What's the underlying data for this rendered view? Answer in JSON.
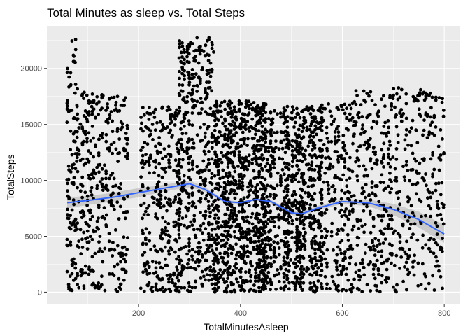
{
  "chart_data": {
    "type": "scatter",
    "title": "Total Minutes as sleep vs. Total Steps",
    "xlabel": "TotalMinutesAsleep",
    "ylabel": "TotalSteps",
    "xlim": [
      20,
      830
    ],
    "ylim": [
      -1100,
      23800
    ],
    "xticks": [
      200,
      400,
      600,
      800
    ],
    "xtick_labels": [
      "200",
      "400",
      "600",
      "800"
    ],
    "yticks": [
      0,
      5000,
      10000,
      15000,
      20000
    ],
    "ytick_labels": [
      "0",
      "5000",
      "10000",
      "15000",
      "20000"
    ],
    "grid": true,
    "legend": "none",
    "colors": {
      "panel": "#ebebeb",
      "grid": "#ffffff",
      "points": "#000000",
      "smooth_line": "#3366ff",
      "confidence_band": "#999999"
    },
    "smooth_line": {
      "x": [
        60,
        100,
        150,
        200,
        250,
        300,
        330,
        370,
        400,
        430,
        460,
        500,
        520,
        550,
        600,
        650,
        700,
        750,
        800
      ],
      "y": [
        8000,
        8200,
        8500,
        8900,
        9300,
        9700,
        9200,
        8100,
        8000,
        8300,
        8100,
        7100,
        7000,
        7500,
        8100,
        8000,
        7400,
        6500,
        5200
      ]
    },
    "confidence_band": {
      "x": [
        60,
        100,
        150,
        200,
        250,
        300,
        330,
        370,
        400,
        430,
        460,
        500,
        520,
        550,
        600,
        650,
        700,
        750,
        800
      ],
      "lower": [
        7500,
        7800,
        8100,
        8500,
        9000,
        9400,
        9000,
        7950,
        7900,
        8200,
        7950,
        6900,
        6800,
        7300,
        7900,
        7700,
        6900,
        5800,
        4400
      ],
      "upper": [
        8500,
        8600,
        8900,
        9300,
        9600,
        10000,
        9400,
        8250,
        8100,
        8400,
        8250,
        7300,
        7200,
        7700,
        8300,
        8300,
        7900,
        7200,
        6000
      ]
    },
    "point_columns": [
      {
        "x": [
          60,
          80
        ],
        "y_min": 0,
        "y_max": 22800,
        "density": 0.45
      },
      {
        "x": [
          80,
          130
        ],
        "y_min": 0,
        "y_max": 18300,
        "density": 0.3
      },
      {
        "x": [
          130,
          180
        ],
        "y_min": 0,
        "y_max": 18000,
        "density": 0.2
      },
      {
        "x": [
          205,
          280
        ],
        "y_min": 0,
        "y_max": 16600,
        "density": 0.35
      },
      {
        "x": [
          280,
          350
        ],
        "y_min": 0,
        "y_max": 22800,
        "density": 0.75
      },
      {
        "x": [
          350,
          460
        ],
        "y_min": 0,
        "y_max": 17100,
        "density": 1.0
      },
      {
        "x": [
          460,
          560
        ],
        "y_min": 0,
        "y_max": 16600,
        "density": 0.75
      },
      {
        "x": [
          560,
          620
        ],
        "y_min": 0,
        "y_max": 17000,
        "density": 0.3
      },
      {
        "x": [
          620,
          700
        ],
        "y_min": 0,
        "y_max": 18000,
        "density": 0.22
      },
      {
        "x": [
          700,
          800
        ],
        "y_min": 0,
        "y_max": 18300,
        "density": 0.12
      }
    ]
  }
}
